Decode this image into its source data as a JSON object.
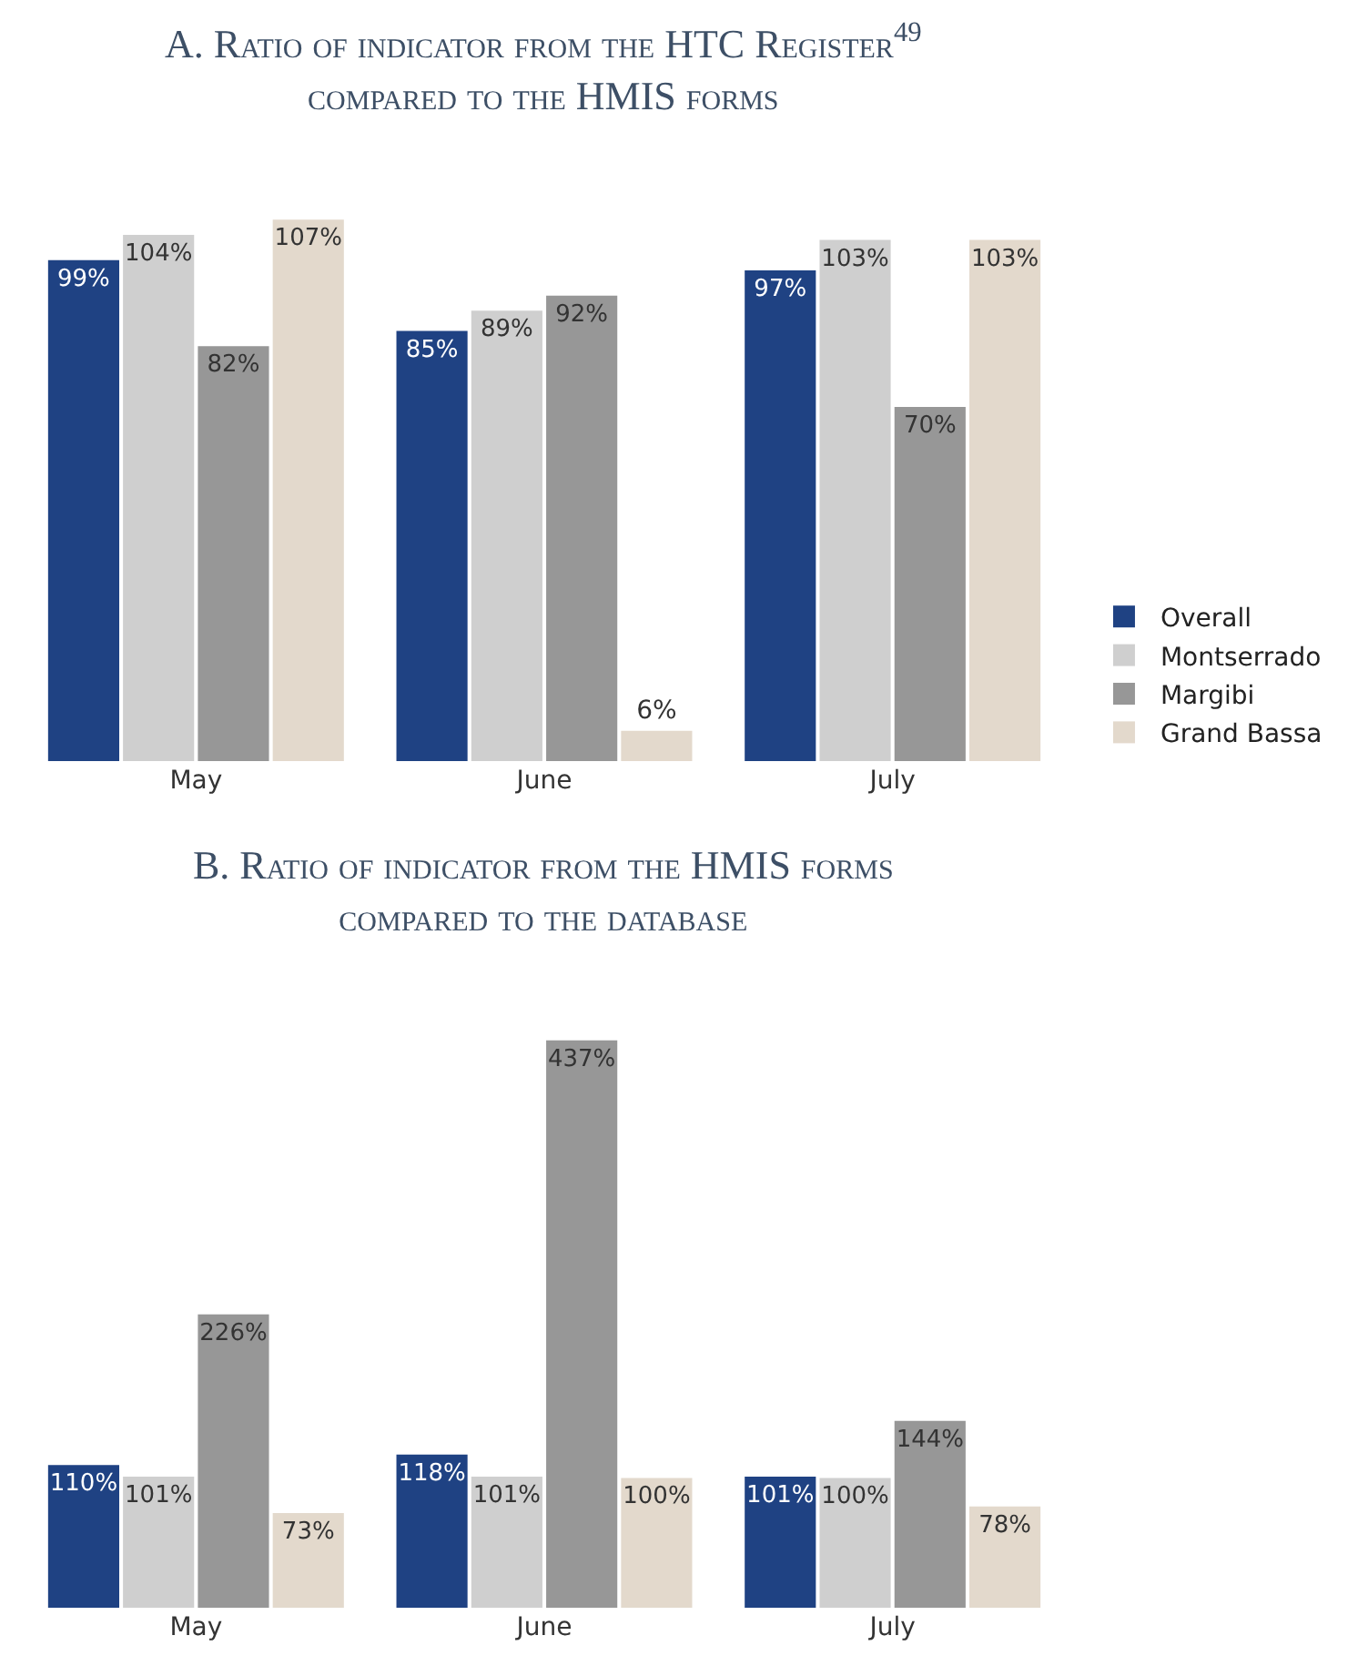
{
  "chart_data": [
    {
      "type": "bar",
      "title": "A. Ratio of indicator from the HTC Register$^{49}$\ncompared to the HMIS forms",
      "categories": [
        "May",
        "June",
        "July"
      ],
      "legend": "right",
      "series": [
        {
          "name": "Overall",
          "color": "#1f4283",
          "values": [
            99,
            85,
            97
          ],
          "value_labels": [
            "99%",
            "85%",
            "97%"
          ]
        },
        {
          "name": "Montserrado",
          "color": "#cfcfcf",
          "values": [
            104,
            89,
            103
          ],
          "value_labels": [
            "104%",
            "89%",
            "103%"
          ]
        },
        {
          "name": "Margibi",
          "color": "#979797",
          "values": [
            82,
            92,
            70
          ],
          "value_labels": [
            "82%",
            "92%",
            "70%"
          ]
        },
        {
          "name": "Grand Bassa",
          "color": "#e3d9cc",
          "values": [
            107,
            6,
            103
          ],
          "value_labels": [
            "107%",
            "6%",
            "103%"
          ]
        }
      ]
    },
    {
      "type": "bar",
      "title": "B. Ratio of indicator from the HMIS forms\ncompared to the database",
      "categories": [
        "May",
        "June",
        "July"
      ],
      "series": [
        {
          "color": "#1f4283",
          "values": [
            110,
            118,
            101
          ],
          "value_labels": [
            "110%",
            "118%",
            "101%"
          ]
        },
        {
          "color": "#cfcfcf",
          "values": [
            101,
            101,
            100
          ],
          "value_labels": [
            "101%",
            "101%",
            "100%"
          ]
        },
        {
          "color": "#979797",
          "values": [
            226,
            437,
            144
          ],
          "value_labels": [
            "226%",
            "437%",
            "144%"
          ]
        },
        {
          "color": "#e3d9cc",
          "values": [
            73,
            100,
            78
          ],
          "value_labels": [
            "73%",
            "100%",
            "78%"
          ]
        }
      ]
    }
  ]
}
